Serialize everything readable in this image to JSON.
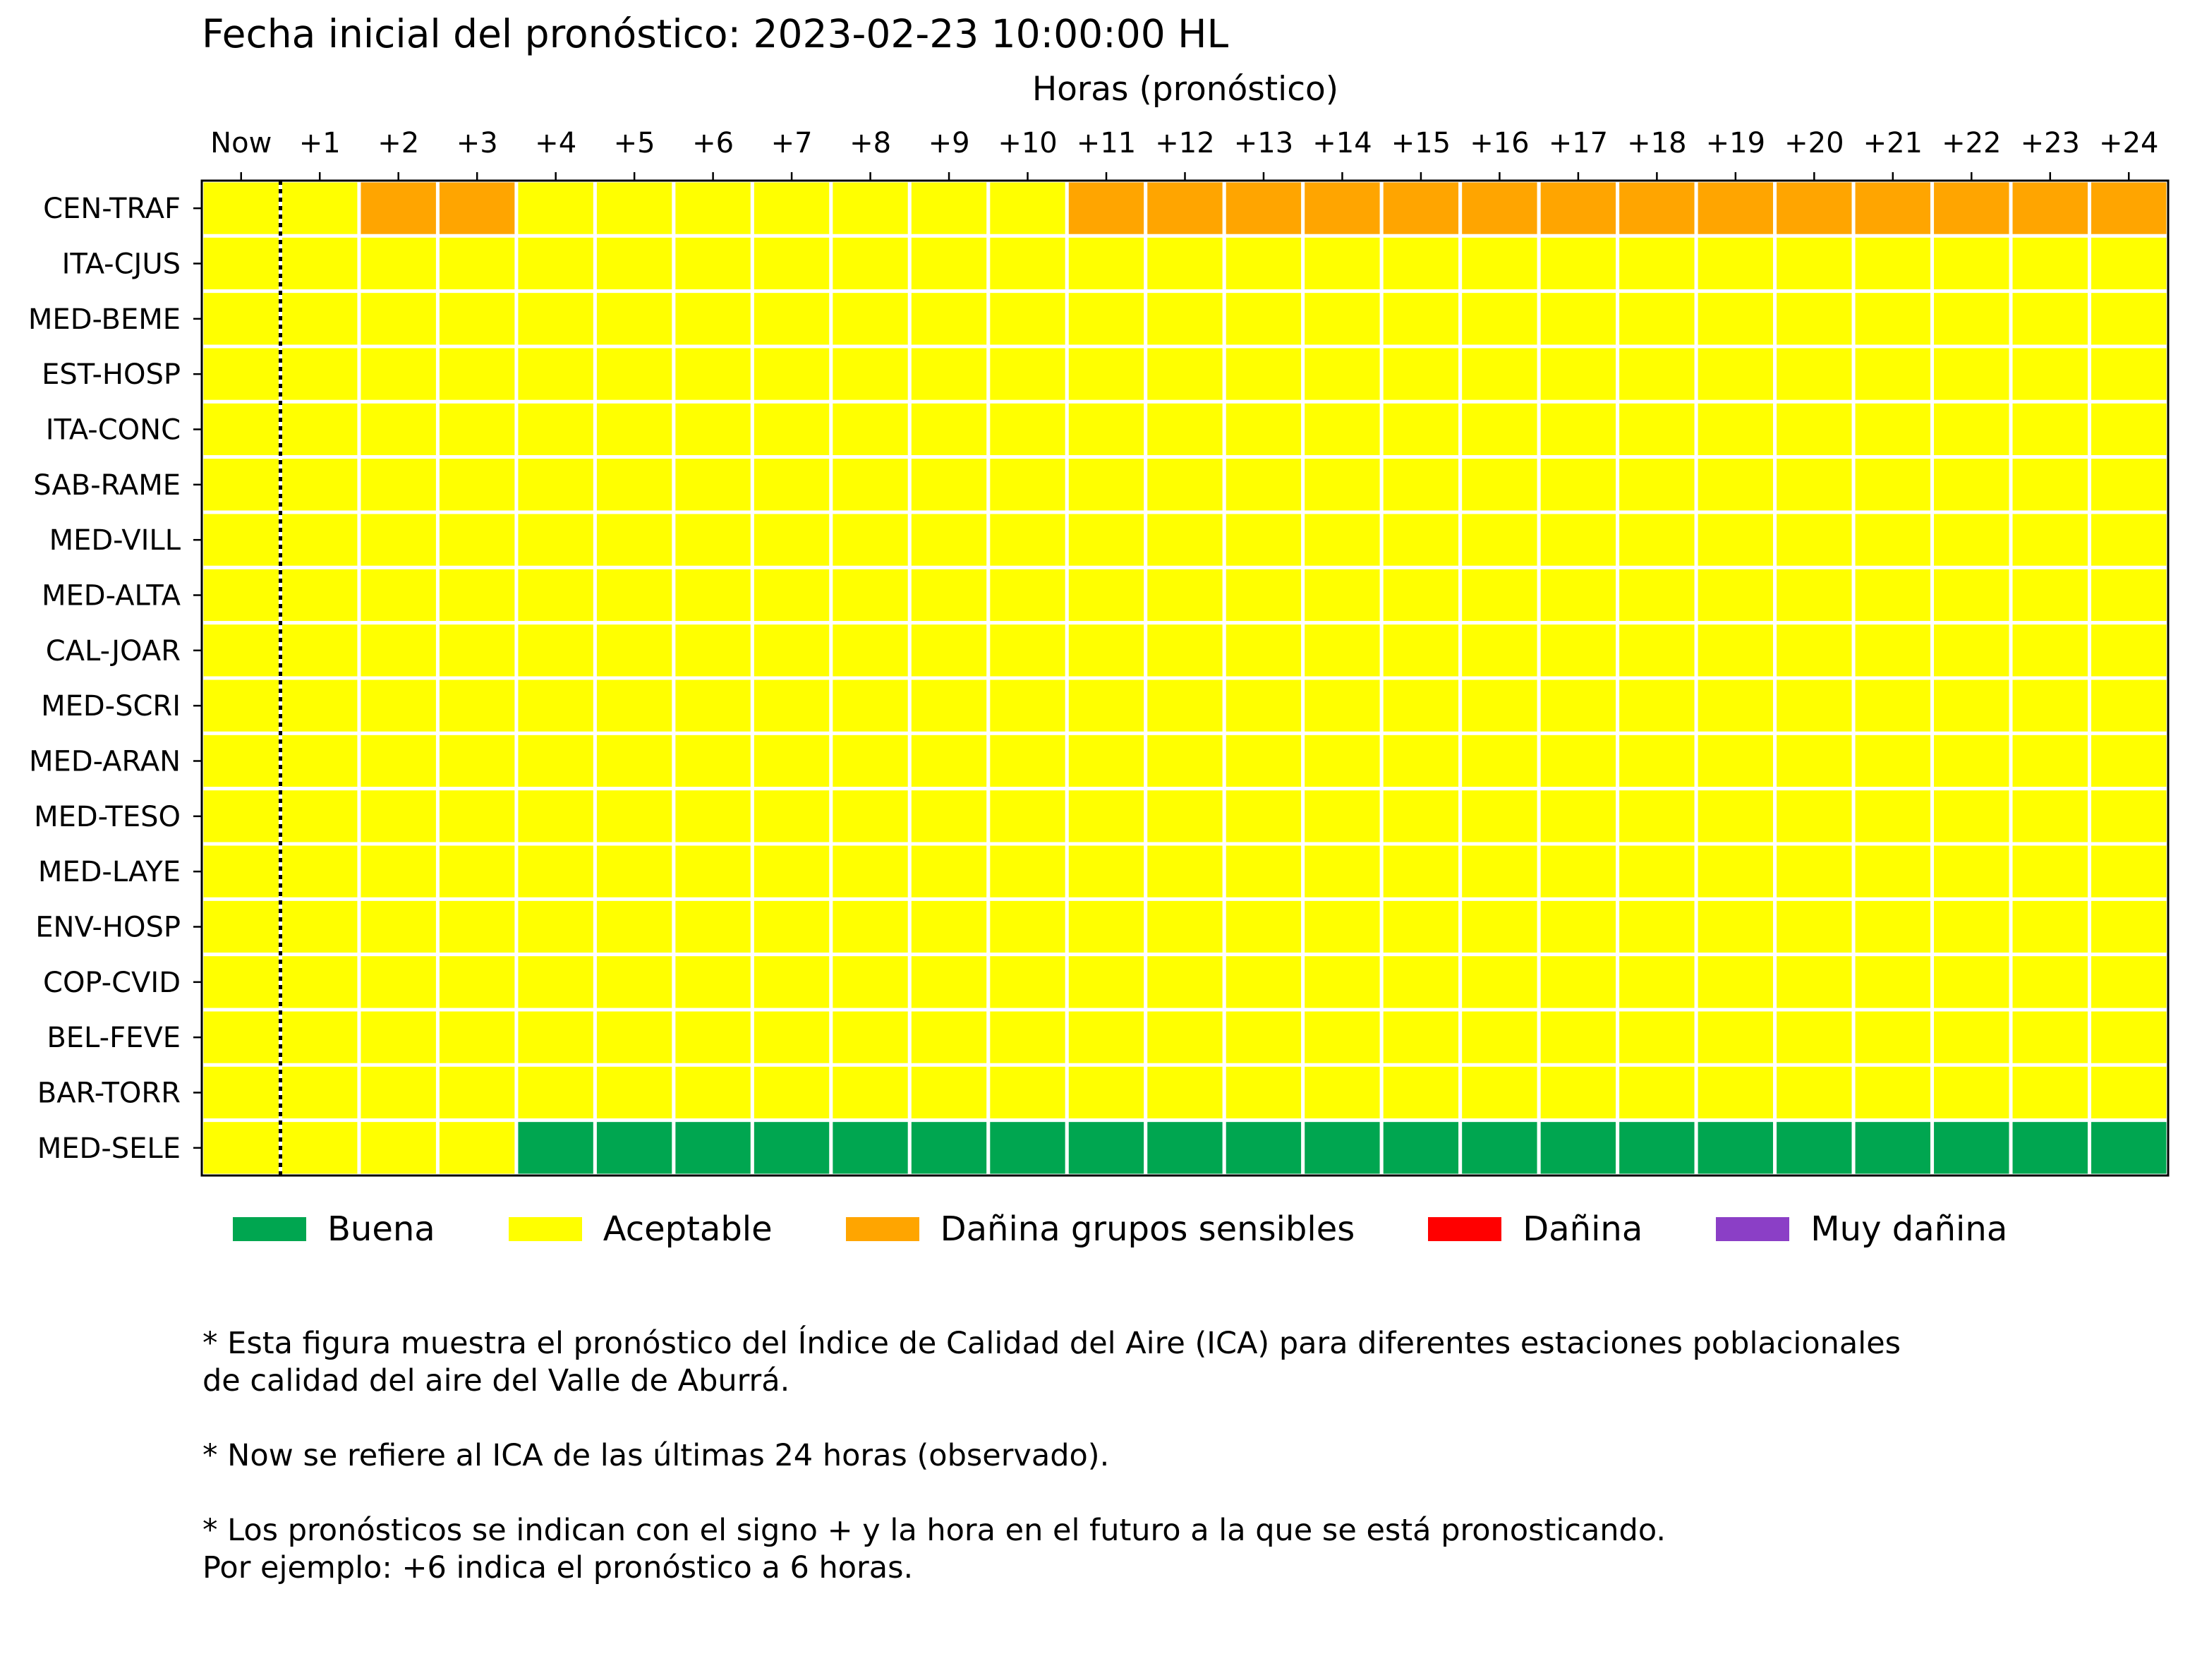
{
  "chart_data": {
    "type": "heatmap",
    "title": "Fecha inicial del pronóstico: 2023-02-23 10:00:00 HL",
    "xlabel": "Horas (pronóstico)",
    "x": [
      "Now",
      "+1",
      "+2",
      "+3",
      "+4",
      "+5",
      "+6",
      "+7",
      "+8",
      "+9",
      "+10",
      "+11",
      "+12",
      "+13",
      "+14",
      "+15",
      "+16",
      "+17",
      "+18",
      "+19",
      "+20",
      "+21",
      "+22",
      "+23",
      "+24"
    ],
    "y": [
      "CEN-TRAF",
      "ITA-CJUS",
      "MED-BEME",
      "EST-HOSP",
      "ITA-CONC",
      "SAB-RAME",
      "MED-VILL",
      "MED-ALTA",
      "CAL-JOAR",
      "MED-SCRI",
      "MED-ARAN",
      "MED-TESO",
      "MED-LAYE",
      "ENV-HOSP",
      "COP-CVID",
      "BEL-FEVE",
      "BAR-TORR",
      "MED-SELE"
    ],
    "categories": [
      "Buena",
      "Aceptable",
      "Dañina grupos sensibles",
      "Dañina",
      "Muy dañina"
    ],
    "colors": [
      "#00a650",
      "#ffff00",
      "#ffa500",
      "#ff0000",
      "#8b3fc6"
    ],
    "values": [
      [
        1,
        1,
        2,
        2,
        1,
        1,
        1,
        1,
        1,
        1,
        1,
        2,
        2,
        2,
        2,
        2,
        2,
        2,
        2,
        2,
        2,
        2,
        2,
        2,
        2
      ],
      [
        1,
        1,
        1,
        1,
        1,
        1,
        1,
        1,
        1,
        1,
        1,
        1,
        1,
        1,
        1,
        1,
        1,
        1,
        1,
        1,
        1,
        1,
        1,
        1,
        1
      ],
      [
        1,
        1,
        1,
        1,
        1,
        1,
        1,
        1,
        1,
        1,
        1,
        1,
        1,
        1,
        1,
        1,
        1,
        1,
        1,
        1,
        1,
        1,
        1,
        1,
        1
      ],
      [
        1,
        1,
        1,
        1,
        1,
        1,
        1,
        1,
        1,
        1,
        1,
        1,
        1,
        1,
        1,
        1,
        1,
        1,
        1,
        1,
        1,
        1,
        1,
        1,
        1
      ],
      [
        1,
        1,
        1,
        1,
        1,
        1,
        1,
        1,
        1,
        1,
        1,
        1,
        1,
        1,
        1,
        1,
        1,
        1,
        1,
        1,
        1,
        1,
        1,
        1,
        1
      ],
      [
        1,
        1,
        1,
        1,
        1,
        1,
        1,
        1,
        1,
        1,
        1,
        1,
        1,
        1,
        1,
        1,
        1,
        1,
        1,
        1,
        1,
        1,
        1,
        1,
        1
      ],
      [
        1,
        1,
        1,
        1,
        1,
        1,
        1,
        1,
        1,
        1,
        1,
        1,
        1,
        1,
        1,
        1,
        1,
        1,
        1,
        1,
        1,
        1,
        1,
        1,
        1
      ],
      [
        1,
        1,
        1,
        1,
        1,
        1,
        1,
        1,
        1,
        1,
        1,
        1,
        1,
        1,
        1,
        1,
        1,
        1,
        1,
        1,
        1,
        1,
        1,
        1,
        1
      ],
      [
        1,
        1,
        1,
        1,
        1,
        1,
        1,
        1,
        1,
        1,
        1,
        1,
        1,
        1,
        1,
        1,
        1,
        1,
        1,
        1,
        1,
        1,
        1,
        1,
        1
      ],
      [
        1,
        1,
        1,
        1,
        1,
        1,
        1,
        1,
        1,
        1,
        1,
        1,
        1,
        1,
        1,
        1,
        1,
        1,
        1,
        1,
        1,
        1,
        1,
        1,
        1
      ],
      [
        1,
        1,
        1,
        1,
        1,
        1,
        1,
        1,
        1,
        1,
        1,
        1,
        1,
        1,
        1,
        1,
        1,
        1,
        1,
        1,
        1,
        1,
        1,
        1,
        1
      ],
      [
        1,
        1,
        1,
        1,
        1,
        1,
        1,
        1,
        1,
        1,
        1,
        1,
        1,
        1,
        1,
        1,
        1,
        1,
        1,
        1,
        1,
        1,
        1,
        1,
        1
      ],
      [
        1,
        1,
        1,
        1,
        1,
        1,
        1,
        1,
        1,
        1,
        1,
        1,
        1,
        1,
        1,
        1,
        1,
        1,
        1,
        1,
        1,
        1,
        1,
        1,
        1
      ],
      [
        1,
        1,
        1,
        1,
        1,
        1,
        1,
        1,
        1,
        1,
        1,
        1,
        1,
        1,
        1,
        1,
        1,
        1,
        1,
        1,
        1,
        1,
        1,
        1,
        1
      ],
      [
        1,
        1,
        1,
        1,
        1,
        1,
        1,
        1,
        1,
        1,
        1,
        1,
        1,
        1,
        1,
        1,
        1,
        1,
        1,
        1,
        1,
        1,
        1,
        1,
        1
      ],
      [
        1,
        1,
        1,
        1,
        1,
        1,
        1,
        1,
        1,
        1,
        1,
        1,
        1,
        1,
        1,
        1,
        1,
        1,
        1,
        1,
        1,
        1,
        1,
        1,
        1
      ],
      [
        1,
        1,
        1,
        1,
        1,
        1,
        1,
        1,
        1,
        1,
        1,
        1,
        1,
        1,
        1,
        1,
        1,
        1,
        1,
        1,
        1,
        1,
        1,
        1,
        1
      ],
      [
        1,
        1,
        1,
        1,
        0,
        0,
        0,
        0,
        0,
        0,
        0,
        0,
        0,
        0,
        0,
        0,
        0,
        0,
        0,
        0,
        0,
        0,
        0,
        0,
        0
      ]
    ],
    "legend": "bottom"
  },
  "notes": [
    "* Esta figura muestra el pronóstico del Índice de Calidad del Aire (ICA) para diferentes estaciones poblacionales",
    "de calidad del aire del Valle de Aburrá.",
    "",
    "* Now se refiere al ICA de las últimas 24 horas (observado).",
    "",
    "* Los pronósticos se indican con el signo + y la hora en el futuro a la que se está pronosticando.",
    "Por ejemplo: +6 indica el pronóstico a 6 horas."
  ]
}
